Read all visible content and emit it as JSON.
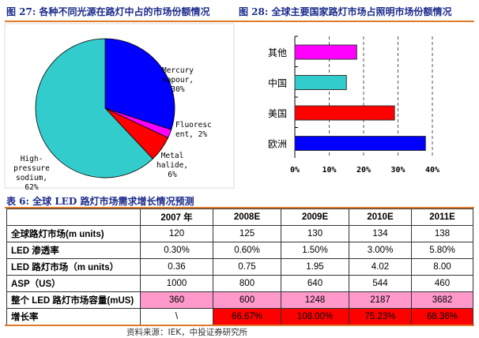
{
  "fig27": {
    "title": "图 27: 各种不同光源在路灯中占的市场份额情况"
  },
  "fig28": {
    "title": "图 28: 全球主要国家路灯市场占照明市场份额情况"
  },
  "chart_data": [
    {
      "type": "pie",
      "slices": [
        {
          "label": [
            "Mercury",
            "vapour,",
            "30%"
          ],
          "value": 30,
          "color": "#0000ff"
        },
        {
          "label": [
            "Fluoresc",
            "ent, 2%"
          ],
          "value": 2,
          "color": "#ff00ff"
        },
        {
          "label": [
            "Metal",
            "halide,",
            "6%"
          ],
          "value": 6,
          "color": "#ff0000"
        },
        {
          "label": [
            "High-",
            "pressure",
            "sodium,",
            "62%"
          ],
          "value": 62,
          "color": "#33cccc"
        }
      ]
    },
    {
      "type": "bar",
      "orientation": "horizontal",
      "categories": [
        "其他",
        "中国",
        "美国",
        "欧洲"
      ],
      "values": [
        18,
        15,
        29,
        38
      ],
      "colors": [
        "#ff00ff",
        "#33cccc",
        "#ff0000",
        "#0000ff"
      ],
      "xlim": [
        0,
        40
      ],
      "xticks": [
        "0%",
        "10%",
        "20%",
        "30%",
        "40%"
      ],
      "grid": "vertical dashed"
    }
  ],
  "table": {
    "title": "表 6: 全球 LED 路灯市场需求增长情况预测",
    "headers": [
      "",
      "2007 年",
      "2008E",
      "2009E",
      "2010E",
      "2011E"
    ],
    "rows": [
      [
        "全球路灯市场(m units)",
        "120",
        "125",
        "130",
        "134",
        "138"
      ],
      [
        "LED 渗透率",
        "0.30%",
        "0.60%",
        "1.50%",
        "3.00%",
        "5.80%"
      ],
      [
        "LED 路灯市场（m units）",
        "0.36",
        "0.75",
        "1.95",
        "4.02",
        "8.00"
      ],
      [
        "ASP（US）",
        "1000",
        "800",
        "640",
        "544",
        "460"
      ],
      [
        "整个 LED 路灯市场容量(mUS)",
        "360",
        "600",
        "1248",
        "2187",
        "3682"
      ],
      [
        "增长率",
        "\\",
        "66.67%",
        "108.00%",
        "75.23%",
        "68.36%"
      ]
    ],
    "highlight_colors": {
      "capacity": "#ff99cc",
      "growth": "#ff0000"
    }
  },
  "source": "资料来源：IEK，中投证券研究所"
}
